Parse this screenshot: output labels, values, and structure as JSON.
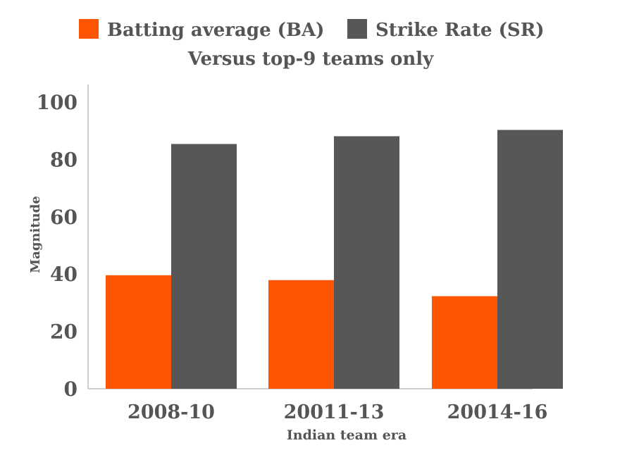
{
  "chart_data": {
    "type": "bar",
    "title": "Versus top-9 teams only",
    "xlabel": "Indian team era",
    "ylabel": "Magnitude",
    "categories": [
      "2008-10",
      "20011-13",
      "20014-16"
    ],
    "series": [
      {
        "name": "Batting average (BA)",
        "values": [
          39.6,
          37.9,
          32.3
        ],
        "color": "#ff5500"
      },
      {
        "name": "Strike Rate (SR)",
        "values": [
          85.4,
          88.1,
          90.3
        ],
        "color": "#575757"
      }
    ],
    "ylim": [
      0,
      100
    ],
    "yticks": [
      0,
      20,
      40,
      60,
      80,
      100
    ],
    "grid": false,
    "legend": "top-center"
  }
}
